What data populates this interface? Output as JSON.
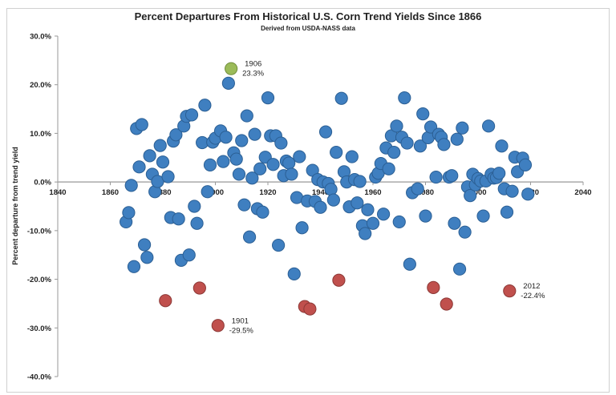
{
  "chart_data": {
    "type": "scatter",
    "title": "Percent Departures From Historical U.S. Corn Trend Yields Since 1866",
    "subtitle": "Derived from USDA-NASS data",
    "xlabel": "",
    "ylabel": "Percent departure from trend yield",
    "xlim": [
      1840,
      2040
    ],
    "ylim": [
      -40,
      30
    ],
    "xticks": [
      "1840",
      "1860",
      "1880",
      "1900",
      "1920",
      "1940",
      "1960",
      "1980",
      "2000",
      "2020",
      "2040"
    ],
    "yticks": [
      "30.0%",
      "20.0%",
      "10.0%",
      "0.0%",
      "-10.0%",
      "-20.0%",
      "-30.0%",
      "-40.0%"
    ],
    "grid": false,
    "colors": {
      "normal": "#3f7fc0",
      "low": "#c0504d",
      "high": "#9bbb59"
    },
    "annotations": [
      {
        "year": "1906",
        "value": "23.3%"
      },
      {
        "year": "1901",
        "value": "-29.5%"
      },
      {
        "year": "2012",
        "value": "-22.4%"
      }
    ],
    "points": [
      [
        1866,
        -8.2
      ],
      [
        1867,
        -6.3
      ],
      [
        1868,
        -0.7
      ],
      [
        1869,
        -17.4
      ],
      [
        1870,
        11.0
      ],
      [
        1871,
        3.1
      ],
      [
        1872,
        11.8
      ],
      [
        1873,
        -12.9
      ],
      [
        1874,
        -15.5
      ],
      [
        1875,
        5.4
      ],
      [
        1876,
        1.6
      ],
      [
        1877,
        -2.0
      ],
      [
        1878,
        0.1
      ],
      [
        1879,
        7.5
      ],
      [
        1880,
        4.1
      ],
      [
        1881,
        -24.4
      ],
      [
        1882,
        1.1
      ],
      [
        1883,
        -7.3
      ],
      [
        1884,
        8.4
      ],
      [
        1885,
        9.7
      ],
      [
        1886,
        -7.6
      ],
      [
        1887,
        -16.1
      ],
      [
        1888,
        11.5
      ],
      [
        1889,
        13.5
      ],
      [
        1890,
        -15.0
      ],
      [
        1891,
        13.8
      ],
      [
        1892,
        -5.0
      ],
      [
        1893,
        -8.5
      ],
      [
        1894,
        -21.8
      ],
      [
        1895,
        8.1
      ],
      [
        1896,
        15.8
      ],
      [
        1897,
        -2.0
      ],
      [
        1898,
        3.5
      ],
      [
        1899,
        8.2
      ],
      [
        1900,
        9.0
      ],
      [
        1901,
        -29.5
      ],
      [
        1902,
        10.5
      ],
      [
        1903,
        4.2
      ],
      [
        1904,
        9.2
      ],
      [
        1905,
        20.3
      ],
      [
        1906,
        23.3
      ],
      [
        1907,
        6.0
      ],
      [
        1908,
        4.7
      ],
      [
        1909,
        1.6
      ],
      [
        1910,
        8.5
      ],
      [
        1911,
        -4.7
      ],
      [
        1912,
        13.6
      ],
      [
        1913,
        -11.3
      ],
      [
        1914,
        0.8
      ],
      [
        1915,
        9.8
      ],
      [
        1916,
        -5.5
      ],
      [
        1917,
        2.7
      ],
      [
        1918,
        -6.2
      ],
      [
        1919,
        5.1
      ],
      [
        1920,
        17.3
      ],
      [
        1921,
        9.5
      ],
      [
        1922,
        3.6
      ],
      [
        1923,
        9.5
      ],
      [
        1924,
        -13.0
      ],
      [
        1925,
        8.0
      ],
      [
        1926,
        1.3
      ],
      [
        1927,
        4.3
      ],
      [
        1928,
        3.9
      ],
      [
        1929,
        1.6
      ],
      [
        1930,
        -18.9
      ],
      [
        1931,
        -3.2
      ],
      [
        1932,
        5.2
      ],
      [
        1933,
        -9.4
      ],
      [
        1934,
        -25.6
      ],
      [
        1935,
        -3.9
      ],
      [
        1936,
        -26.1
      ],
      [
        1937,
        2.4
      ],
      [
        1938,
        -4.0
      ],
      [
        1939,
        0.5
      ],
      [
        1940,
        -5.2
      ],
      [
        1941,
        0.0
      ],
      [
        1942,
        10.3
      ],
      [
        1943,
        -0.3
      ],
      [
        1944,
        -1.5
      ],
      [
        1945,
        -3.7
      ],
      [
        1946,
        6.1
      ],
      [
        1947,
        -20.2
      ],
      [
        1948,
        17.2
      ],
      [
        1949,
        2.1
      ],
      [
        1950,
        0.0
      ],
      [
        1951,
        -5.1
      ],
      [
        1952,
        5.2
      ],
      [
        1953,
        0.5
      ],
      [
        1954,
        -4.3
      ],
      [
        1955,
        0.1
      ],
      [
        1956,
        -9.0
      ],
      [
        1957,
        -10.6
      ],
      [
        1958,
        -5.7
      ],
      [
        1960,
        -8.5
      ],
      [
        1961,
        1.0
      ],
      [
        1962,
        1.8
      ],
      [
        1963,
        3.8
      ],
      [
        1964,
        -6.6
      ],
      [
        1965,
        7.0
      ],
      [
        1966,
        2.7
      ],
      [
        1967,
        9.5
      ],
      [
        1968,
        6.1
      ],
      [
        1969,
        11.5
      ],
      [
        1970,
        -8.2
      ],
      [
        1971,
        9.2
      ],
      [
        1972,
        17.3
      ],
      [
        1973,
        8.0
      ],
      [
        1974,
        -16.9
      ],
      [
        1975,
        -2.2
      ],
      [
        1977,
        -1.4
      ],
      [
        1978,
        7.4
      ],
      [
        1979,
        14.0
      ],
      [
        1980,
        -7.0
      ],
      [
        1981,
        9.1
      ],
      [
        1982,
        11.3
      ],
      [
        1983,
        -21.7
      ],
      [
        1984,
        1.0
      ],
      [
        1985,
        9.8
      ],
      [
        1986,
        9.2
      ],
      [
        1987,
        7.7
      ],
      [
        1988,
        -25.1
      ],
      [
        1989,
        1.0
      ],
      [
        1990,
        1.3
      ],
      [
        1991,
        -8.5
      ],
      [
        1992,
        8.8
      ],
      [
        1993,
        -17.9
      ],
      [
        1994,
        11.1
      ],
      [
        1995,
        -10.3
      ],
      [
        1996,
        -1.0
      ],
      [
        1997,
        -2.8
      ],
      [
        1998,
        1.6
      ],
      [
        1999,
        -0.6
      ],
      [
        2000,
        0.7
      ],
      [
        2001,
        0.2
      ],
      [
        2002,
        -7.0
      ],
      [
        2003,
        0.2
      ],
      [
        2004,
        11.5
      ],
      [
        2005,
        1.6
      ],
      [
        2006,
        0.8
      ],
      [
        2007,
        0.9
      ],
      [
        2008,
        1.8
      ],
      [
        2009,
        7.4
      ],
      [
        2010,
        -1.4
      ],
      [
        2011,
        -6.2
      ],
      [
        2012,
        -22.4
      ],
      [
        2013,
        -1.9
      ],
      [
        2014,
        5.1
      ],
      [
        2015,
        2.1
      ],
      [
        2017,
        4.9
      ],
      [
        2018,
        3.5
      ],
      [
        2019,
        -2.5
      ]
    ]
  }
}
